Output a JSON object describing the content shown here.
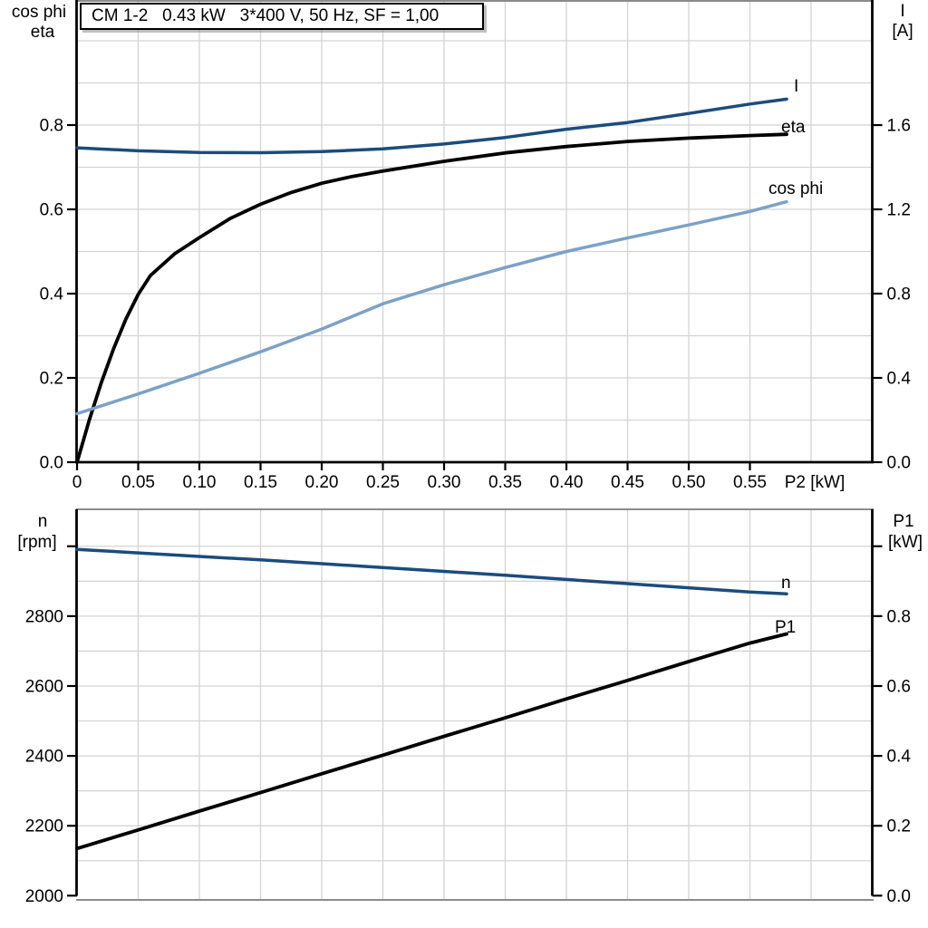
{
  "title_box": {
    "text": "CM 1-2   0.43 kW   3*400 V, 50 Hz, SF = 1,00"
  },
  "colors": {
    "dark_blue": "#1b4c7d",
    "light_blue": "#7ca1c8",
    "black": "#000000",
    "grid": "#d4d4d4",
    "border_gray": "#8b8b8b"
  },
  "chart_data": [
    {
      "id": "electrical-curves",
      "type": "line",
      "title": "CM 1-2   0.43 kW   3*400 V, 50 Hz, SF = 1,00",
      "x_axis": {
        "label": "P2 [kW]",
        "min": 0,
        "max": 0.65,
        "ticks": [
          {
            "v": 0,
            "label": "0"
          },
          {
            "v": 0.05,
            "label": "0.05"
          },
          {
            "v": 0.1,
            "label": "0.10"
          },
          {
            "v": 0.15,
            "label": "0.15"
          },
          {
            "v": 0.2,
            "label": "0.20"
          },
          {
            "v": 0.25,
            "label": "0.25"
          },
          {
            "v": 0.3,
            "label": "0.30"
          },
          {
            "v": 0.35,
            "label": "0.35"
          },
          {
            "v": 0.4,
            "label": "0.40"
          },
          {
            "v": 0.45,
            "label": "0.45"
          },
          {
            "v": 0.5,
            "label": "0.50"
          },
          {
            "v": 0.55,
            "label": "0.55"
          }
        ],
        "grid": [
          0.05,
          0.1,
          0.15,
          0.2,
          0.25,
          0.3,
          0.35,
          0.4,
          0.45,
          0.5,
          0.55,
          0.6
        ]
      },
      "left_axis": {
        "label_lines": [
          "cos phi",
          "eta"
        ],
        "min": 0,
        "max": 1.1,
        "base": 0,
        "ticks": [
          {
            "v": 0.0,
            "label": "0.0"
          },
          {
            "v": 0.2,
            "label": "0.2"
          },
          {
            "v": 0.4,
            "label": "0.4"
          },
          {
            "v": 0.6,
            "label": "0.6"
          },
          {
            "v": 0.8,
            "label": "0.8"
          }
        ],
        "grid": [
          0.1,
          0.2,
          0.3,
          0.4,
          0.5,
          0.6,
          0.7,
          0.8,
          0.9,
          1.0
        ]
      },
      "right_axis": {
        "label_lines": [
          "I",
          "[A]"
        ],
        "min": 0,
        "max": 2.2,
        "base": 0,
        "ticks": [
          {
            "v": 0.0,
            "label": "0.0"
          },
          {
            "v": 0.4,
            "label": "0.4"
          },
          {
            "v": 0.8,
            "label": "0.8"
          },
          {
            "v": 1.2,
            "label": "1.2"
          },
          {
            "v": 1.6,
            "label": "1.6"
          }
        ]
      },
      "series": [
        {
          "name": "I",
          "axis": "right",
          "color_key": "dark_blue",
          "points": [
            [
              0,
              1.492
            ],
            [
              0.05,
              1.478
            ],
            [
              0.1,
              1.47
            ],
            [
              0.15,
              1.469
            ],
            [
              0.2,
              1.474
            ],
            [
              0.25,
              1.487
            ],
            [
              0.3,
              1.51
            ],
            [
              0.35,
              1.541
            ],
            [
              0.4,
              1.58
            ],
            [
              0.45,
              1.612
            ],
            [
              0.5,
              1.655
            ],
            [
              0.55,
              1.7
            ],
            [
              0.58,
              1.723
            ]
          ]
        },
        {
          "name": "eta",
          "axis": "left",
          "color_key": "black",
          "points": [
            [
              0,
              0
            ],
            [
              0.005,
              0.05
            ],
            [
              0.01,
              0.1
            ],
            [
              0.02,
              0.19
            ],
            [
              0.03,
              0.27
            ],
            [
              0.04,
              0.34
            ],
            [
              0.05,
              0.398
            ],
            [
              0.06,
              0.443
            ],
            [
              0.08,
              0.495
            ],
            [
              0.1,
              0.533
            ],
            [
              0.125,
              0.578
            ],
            [
              0.15,
              0.612
            ],
            [
              0.175,
              0.64
            ],
            [
              0.2,
              0.662
            ],
            [
              0.225,
              0.678
            ],
            [
              0.25,
              0.691
            ],
            [
              0.3,
              0.714
            ],
            [
              0.35,
              0.734
            ],
            [
              0.4,
              0.749
            ],
            [
              0.45,
              0.761
            ],
            [
              0.5,
              0.769
            ],
            [
              0.55,
              0.775
            ],
            [
              0.58,
              0.778
            ]
          ]
        },
        {
          "name": "cos phi",
          "axis": "left",
          "color_key": "light_blue",
          "points": [
            [
              0,
              0.115
            ],
            [
              0.05,
              0.162
            ],
            [
              0.1,
              0.211
            ],
            [
              0.15,
              0.262
            ],
            [
              0.2,
              0.316
            ],
            [
              0.25,
              0.376
            ],
            [
              0.3,
              0.421
            ],
            [
              0.35,
              0.462
            ],
            [
              0.4,
              0.5
            ],
            [
              0.45,
              0.532
            ],
            [
              0.5,
              0.563
            ],
            [
              0.55,
              0.595
            ],
            [
              0.58,
              0.618
            ]
          ]
        }
      ]
    },
    {
      "id": "speed-power-curves",
      "type": "line",
      "x_axis": {
        "label": "",
        "min": 0,
        "max": 0.65,
        "ticks": [],
        "grid": [
          0.05,
          0.1,
          0.15,
          0.2,
          0.25,
          0.3,
          0.35,
          0.4,
          0.45,
          0.5,
          0.55,
          0.6
        ]
      },
      "left_axis": {
        "label_lines": [
          "n",
          "[rpm]"
        ],
        "min": 2000,
        "max": 3100,
        "base": 2000,
        "ticks": [
          {
            "v": 2000,
            "label": "2000"
          },
          {
            "v": 2200,
            "label": "2200"
          },
          {
            "v": 2400,
            "label": "2400"
          },
          {
            "v": 2600,
            "label": "2600"
          },
          {
            "v": 2800,
            "label": "2800"
          },
          {
            "v": 3000,
            "label": ""
          }
        ],
        "grid": [
          2100,
          2200,
          2300,
          2400,
          2500,
          2600,
          2700,
          2800,
          2900,
          3000
        ]
      },
      "right_axis": {
        "label_lines": [
          "P1",
          "[kW]"
        ],
        "min": 0,
        "max": 1.0,
        "base": 0,
        "ticks": [
          {
            "v": 0.0,
            "label": "0.0"
          },
          {
            "v": 0.2,
            "label": "0.2"
          },
          {
            "v": 0.4,
            "label": "0.4"
          },
          {
            "v": 0.6,
            "label": "0.6"
          },
          {
            "v": 0.8,
            "label": "0.8"
          },
          {
            "v": 1.0,
            "label": ""
          }
        ]
      },
      "series": [
        {
          "name": "n",
          "axis": "left",
          "color_key": "dark_blue",
          "points": [
            [
              0,
              2991
            ],
            [
              0.05,
              2981
            ],
            [
              0.1,
              2971
            ],
            [
              0.15,
              2961
            ],
            [
              0.2,
              2950
            ],
            [
              0.25,
              2939
            ],
            [
              0.3,
              2928
            ],
            [
              0.35,
              2917
            ],
            [
              0.4,
              2905
            ],
            [
              0.45,
              2893
            ],
            [
              0.5,
              2881
            ],
            [
              0.55,
              2869
            ],
            [
              0.58,
              2864
            ]
          ]
        },
        {
          "name": "P1",
          "axis": "right",
          "color_key": "black",
          "points": [
            [
              0,
              0.135
            ],
            [
              0.05,
              0.188
            ],
            [
              0.1,
              0.242
            ],
            [
              0.15,
              0.295
            ],
            [
              0.2,
              0.349
            ],
            [
              0.25,
              0.402
            ],
            [
              0.3,
              0.456
            ],
            [
              0.35,
              0.509
            ],
            [
              0.4,
              0.563
            ],
            [
              0.45,
              0.616
            ],
            [
              0.5,
              0.67
            ],
            [
              0.55,
              0.723
            ],
            [
              0.58,
              0.749
            ]
          ]
        }
      ]
    }
  ]
}
